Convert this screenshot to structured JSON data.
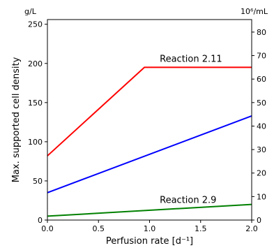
{
  "chart_data": {
    "type": "line",
    "title": "",
    "xlabel": "Perfusion rate [d⁻¹]",
    "ylabel": "Max. supported cell density",
    "y_unit_left": "g/L",
    "y_unit_right": "10⁶/mL",
    "xlim": [
      0,
      2
    ],
    "ylim": [
      0,
      256
    ],
    "y2lim": [
      0,
      85.33
    ],
    "x_ticks": [
      "0.0",
      "0.5",
      "1.0",
      "1.5",
      "2.0"
    ],
    "y_ticks": [
      "0",
      "50",
      "100",
      "150",
      "200",
      "250"
    ],
    "y2_ticks": [
      "0",
      "10",
      "20",
      "30",
      "40",
      "50",
      "60",
      "70",
      "80"
    ],
    "grid": false,
    "series": [
      {
        "color": "#ff0000",
        "x": [
          0.0,
          0.95,
          2.0
        ],
        "y": [
          82,
          195,
          195
        ]
      },
      {
        "color": "#0000ff",
        "x": [
          0.0,
          2.0
        ],
        "y": [
          35,
          133
        ]
      },
      {
        "color": "#008000",
        "x": [
          0.0,
          2.0
        ],
        "y": [
          5,
          20
        ]
      }
    ],
    "annotations": [
      {
        "text": "Reaction 2.11",
        "x": 1.1,
        "y": 202
      },
      {
        "text": "Reaction 2.9",
        "x": 1.1,
        "y": 22
      }
    ]
  }
}
